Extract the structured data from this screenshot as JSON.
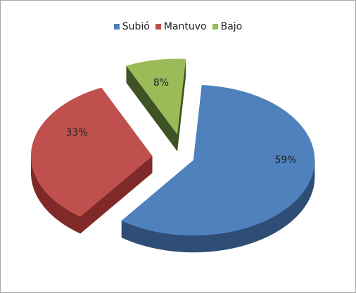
{
  "chart_data": {
    "type": "pie",
    "style": "3d-exploded",
    "legend_position": "top",
    "categories": [
      "Subió",
      "Mantuvo",
      "Bajo"
    ],
    "values": [
      59,
      33,
      8
    ],
    "labels": [
      "59%",
      "33%",
      "8%"
    ],
    "colors": {
      "Subió": "#4f81bd",
      "Mantuvo": "#c0504d",
      "Bajo": "#9bbb59"
    },
    "side_colors": {
      "Subió": "#2e4e75",
      "Mantuvo": "#7f2a28",
      "Bajo": "#3f5225"
    }
  }
}
